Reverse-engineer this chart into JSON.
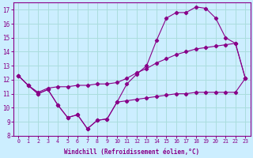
{
  "xlabel": "Windchill (Refroidissement éolien,°C)",
  "background_color": "#cceeff",
  "grid_color": "#aadddd",
  "line_color": "#880088",
  "hours": [
    0,
    1,
    2,
    3,
    4,
    5,
    6,
    7,
    8,
    9,
    10,
    11,
    12,
    13,
    14,
    15,
    16,
    17,
    18,
    19,
    20,
    21,
    22,
    23
  ],
  "curve1": [
    12.3,
    11.6,
    11.0,
    11.3,
    10.2,
    9.3,
    9.5,
    8.5,
    9.1,
    9.2,
    10.4,
    11.7,
    12.4,
    13.0,
    14.8,
    16.4,
    16.8,
    16.8,
    17.2,
    17.1,
    16.4,
    15.0,
    14.6,
    12.1
  ],
  "curve2": [
    12.3,
    11.6,
    11.1,
    11.4,
    11.5,
    11.5,
    11.6,
    11.6,
    11.7,
    11.7,
    11.8,
    12.1,
    12.5,
    12.8,
    13.2,
    13.5,
    13.8,
    14.0,
    14.2,
    14.3,
    14.4,
    14.5,
    14.6,
    12.1
  ],
  "curve3": [
    12.3,
    11.6,
    11.0,
    11.3,
    10.2,
    9.3,
    9.5,
    8.5,
    9.1,
    9.2,
    10.4,
    10.5,
    10.6,
    10.7,
    10.8,
    10.9,
    11.0,
    11.0,
    11.1,
    11.1,
    11.1,
    11.1,
    11.1,
    12.1
  ],
  "ylim": [
    8,
    17.5
  ],
  "yticks": [
    8,
    9,
    10,
    11,
    12,
    13,
    14,
    15,
    16,
    17
  ]
}
